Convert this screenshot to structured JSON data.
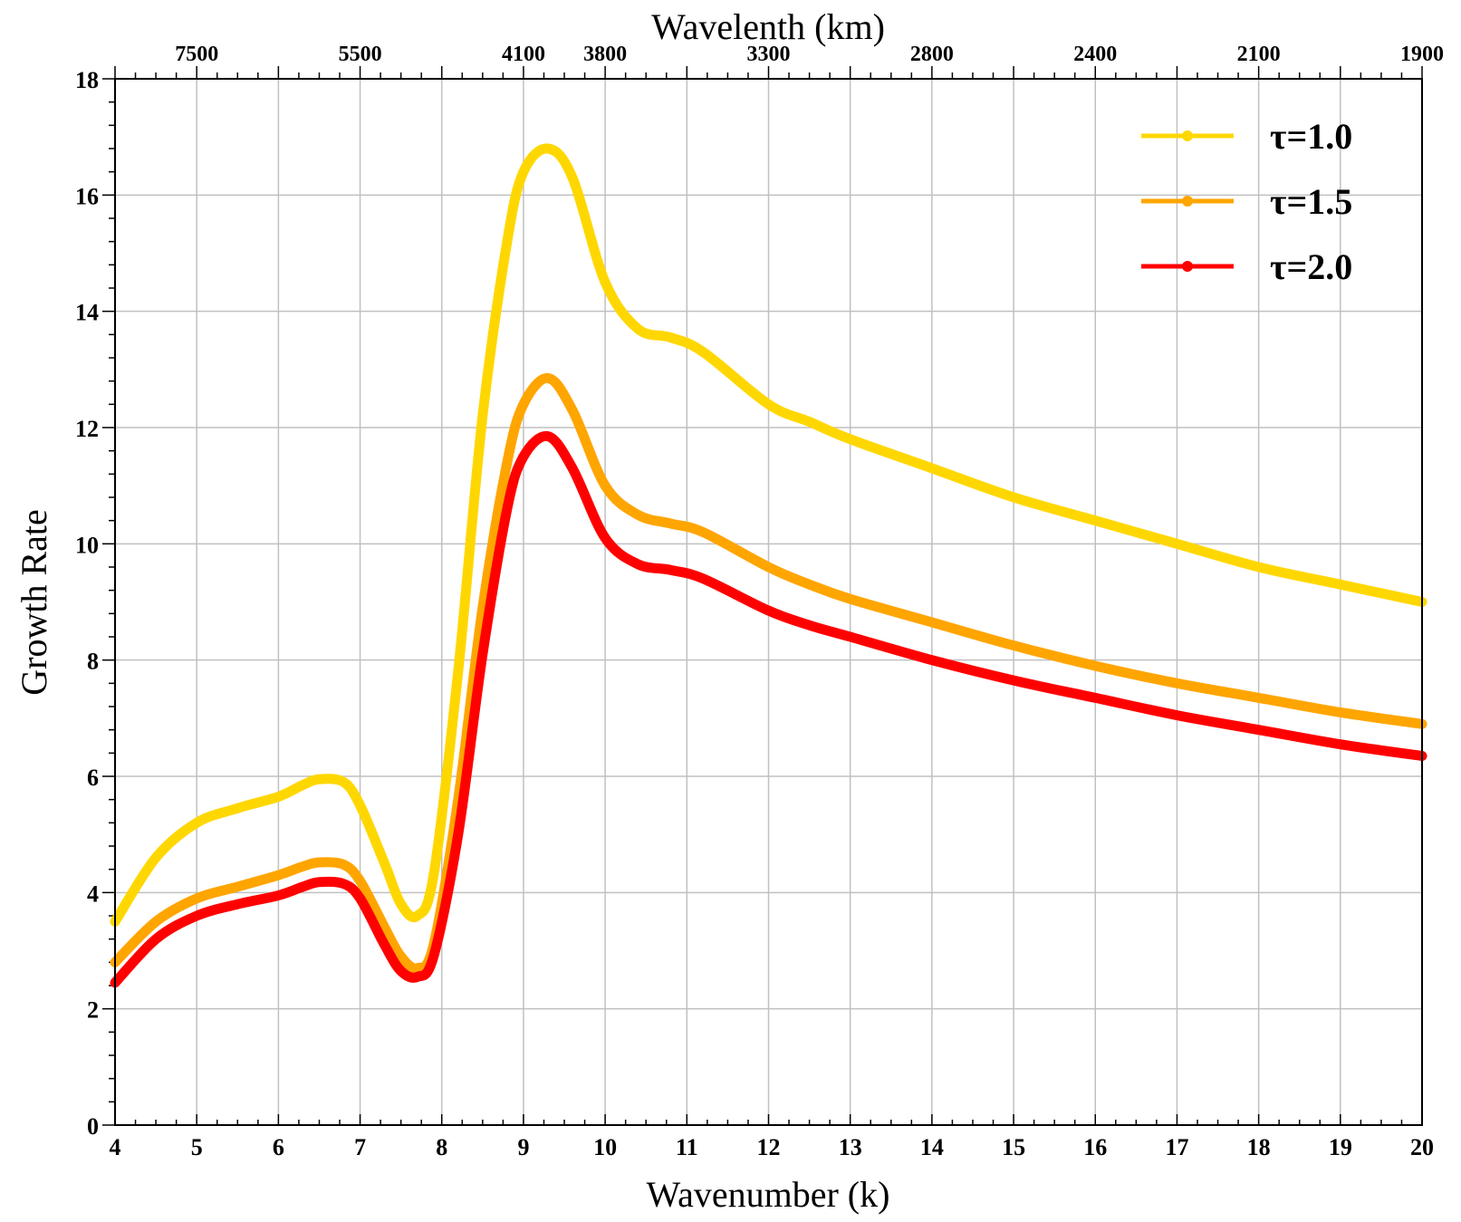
{
  "chart_data": {
    "type": "line",
    "title": "",
    "xlabel": "Wavenumber (k)",
    "ylabel": "Growth Rate",
    "x2label": "Wavelenth (km)",
    "xlim": [
      4,
      20
    ],
    "ylim": [
      0,
      18
    ],
    "x_ticks": [
      "4",
      "5",
      "6",
      "7",
      "8",
      "9",
      "10",
      "11",
      "12",
      "13",
      "14",
      "15",
      "16",
      "17",
      "18",
      "19",
      "20"
    ],
    "y_ticks": [
      "0",
      "2",
      "4",
      "6",
      "8",
      "10",
      "12",
      "14",
      "16",
      "18"
    ],
    "top_ticks": [
      {
        "label": "7500",
        "k": 5
      },
      {
        "label": "5500",
        "k": 7
      },
      {
        "label": "4100",
        "k": 9
      },
      {
        "label": "3800",
        "k": 10
      },
      {
        "label": "3300",
        "k": 12
      },
      {
        "label": "2800",
        "k": 14
      },
      {
        "label": "2400",
        "k": 16
      },
      {
        "label": "2100",
        "k": 18
      },
      {
        "label": "1900",
        "k": 20
      }
    ],
    "grid": true,
    "legend_position": "top-right",
    "series": [
      {
        "name": "τ=1.0",
        "color": "#FFD700",
        "x": [
          4.0,
          4.5,
          5.0,
          5.5,
          6.0,
          6.3,
          6.5,
          6.8,
          7.0,
          7.3,
          7.5,
          7.7,
          7.9,
          8.2,
          8.5,
          8.8,
          9.0,
          9.3,
          9.6,
          10.0,
          10.4,
          10.8,
          11.2,
          12.0,
          12.5,
          13.0,
          14.0,
          15.0,
          16.0,
          17.0,
          18.0,
          19.0,
          20.0
        ],
        "values": [
          3.5,
          4.6,
          5.2,
          5.45,
          5.65,
          5.85,
          5.95,
          5.9,
          5.5,
          4.5,
          3.8,
          3.6,
          4.3,
          7.8,
          12.2,
          15.2,
          16.4,
          16.8,
          16.3,
          14.5,
          13.7,
          13.55,
          13.3,
          12.4,
          12.1,
          11.8,
          11.3,
          10.8,
          10.4,
          10.0,
          9.6,
          9.3,
          9.0
        ]
      },
      {
        "name": "τ=1.5",
        "color": "#FFA500",
        "x": [
          4.0,
          4.5,
          5.0,
          5.5,
          6.0,
          6.3,
          6.5,
          6.8,
          7.0,
          7.3,
          7.5,
          7.7,
          7.9,
          8.2,
          8.5,
          8.8,
          9.0,
          9.3,
          9.6,
          10.0,
          10.4,
          10.8,
          11.2,
          12.0,
          12.5,
          13.0,
          14.0,
          15.0,
          16.0,
          17.0,
          18.0,
          19.0,
          20.0
        ],
        "values": [
          2.8,
          3.5,
          3.9,
          4.1,
          4.3,
          4.45,
          4.52,
          4.48,
          4.2,
          3.4,
          2.9,
          2.7,
          3.1,
          5.6,
          8.9,
          11.4,
          12.4,
          12.85,
          12.3,
          11.0,
          10.5,
          10.35,
          10.2,
          9.6,
          9.3,
          9.05,
          8.65,
          8.25,
          7.9,
          7.6,
          7.35,
          7.1,
          6.9
        ]
      },
      {
        "name": "τ=2.0",
        "color": "#FF0000",
        "x": [
          4.0,
          4.5,
          5.0,
          5.5,
          6.0,
          6.3,
          6.5,
          6.8,
          7.0,
          7.3,
          7.5,
          7.7,
          7.9,
          8.2,
          8.5,
          8.8,
          9.0,
          9.3,
          9.6,
          10.0,
          10.4,
          10.8,
          11.2,
          12.0,
          12.5,
          13.0,
          14.0,
          15.0,
          16.0,
          17.0,
          18.0,
          19.0,
          20.0
        ],
        "values": [
          2.45,
          3.2,
          3.6,
          3.8,
          3.95,
          4.1,
          4.18,
          4.15,
          3.9,
          3.1,
          2.65,
          2.55,
          2.9,
          5.0,
          8.1,
          10.6,
          11.5,
          11.85,
          11.3,
          10.1,
          9.65,
          9.55,
          9.4,
          8.85,
          8.6,
          8.4,
          8.0,
          7.65,
          7.35,
          7.05,
          6.8,
          6.55,
          6.35
        ]
      }
    ]
  }
}
